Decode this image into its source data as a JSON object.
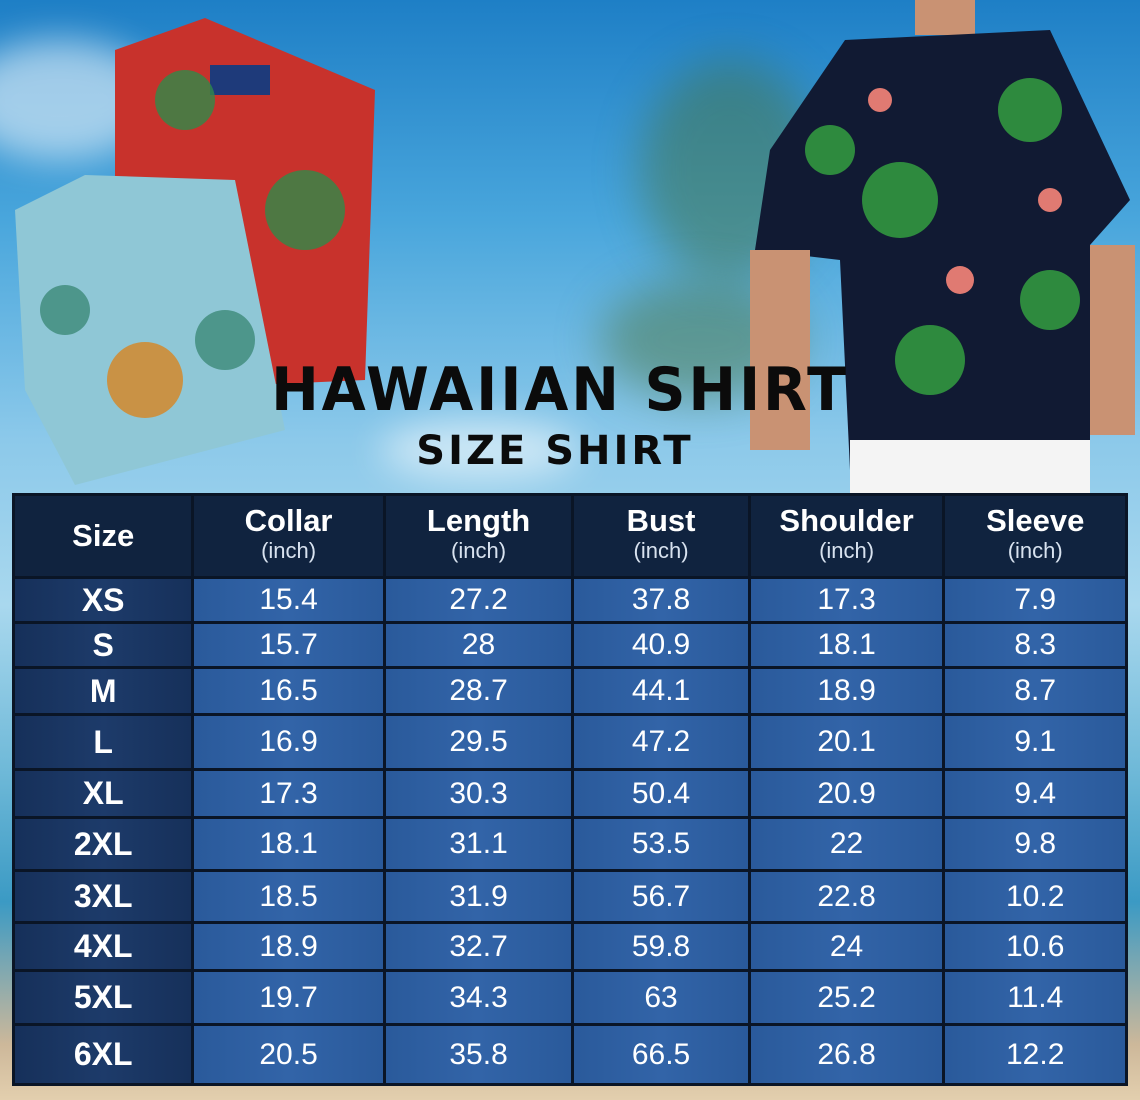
{
  "title": "HAWAIIAN SHIRT",
  "subtitle": "SIZE SHIRT",
  "table": {
    "headers": [
      {
        "label": "Size",
        "unit": ""
      },
      {
        "label": "Collar",
        "unit": "(inch)"
      },
      {
        "label": "Length",
        "unit": "(inch)"
      },
      {
        "label": "Bust",
        "unit": "(inch)"
      },
      {
        "label": "Shoulder",
        "unit": "(inch)"
      },
      {
        "label": "Sleeve",
        "unit": "(inch)"
      }
    ],
    "rows": [
      [
        "XS",
        "15.4",
        "27.2",
        "37.8",
        "17.3",
        "7.9"
      ],
      [
        "S",
        "15.7",
        "28",
        "40.9",
        "18.1",
        "8.3"
      ],
      [
        "M",
        "16.5",
        "28.7",
        "44.1",
        "18.9",
        "8.7"
      ],
      [
        "L",
        "16.9",
        "29.5",
        "47.2",
        "20.1",
        "9.1"
      ],
      [
        "XL",
        "17.3",
        "30.3",
        "50.4",
        "20.9",
        "9.4"
      ],
      [
        "2XL",
        "18.1",
        "31.1",
        "53.5",
        "22",
        "9.8"
      ],
      [
        "3XL",
        "18.5",
        "31.9",
        "56.7",
        "22.8",
        "10.2"
      ],
      [
        "4XL",
        "18.9",
        "32.7",
        "59.8",
        "24",
        "10.6"
      ],
      [
        "5XL",
        "19.7",
        "34.3",
        "63",
        "25.2",
        "11.4"
      ],
      [
        "6XL",
        "20.5",
        "35.8",
        "66.5",
        "26.8",
        "12.2"
      ]
    ]
  },
  "colors": {
    "header": "#10233f",
    "size_cell": "#16305a",
    "value_cell": "#2a5a9b",
    "title": "#0b0b0b"
  }
}
